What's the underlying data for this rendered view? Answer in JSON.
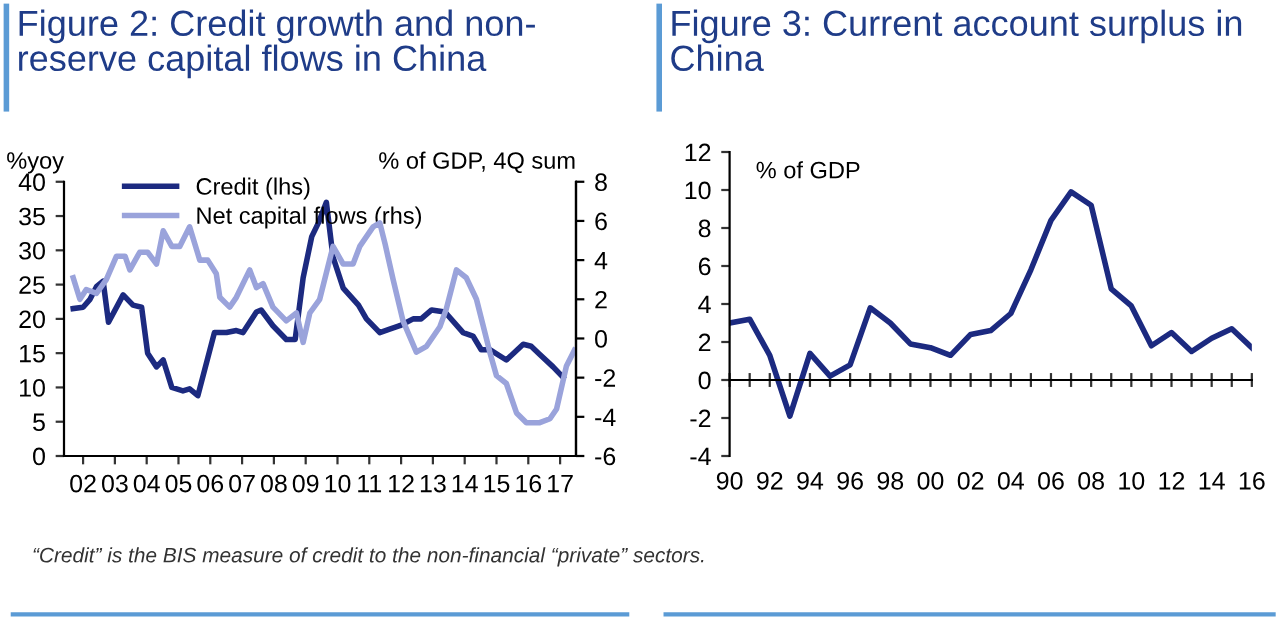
{
  "chart_data": [
    {
      "type": "line",
      "title": "Figure 2: Credit growth and non-\nreserve capital flows in China",
      "ylabel": "%yoy",
      "y2label": "% of GDP, 4Q sum",
      "legend": "top left",
      "xlim": [
        2001.4,
        2017.5
      ],
      "xticks": [
        {
          "value": 2002,
          "label": "02"
        },
        {
          "value": 2003,
          "label": "03"
        },
        {
          "value": 2004,
          "label": "04"
        },
        {
          "value": 2005,
          "label": "05"
        },
        {
          "value": 2006,
          "label": "06"
        },
        {
          "value": 2007,
          "label": "07"
        },
        {
          "value": 2008,
          "label": "08"
        },
        {
          "value": 2009,
          "label": "09"
        },
        {
          "value": 2010,
          "label": "10"
        },
        {
          "value": 2011,
          "label": "11"
        },
        {
          "value": 2012,
          "label": "12"
        },
        {
          "value": 2013,
          "label": "13"
        },
        {
          "value": 2014,
          "label": "14"
        },
        {
          "value": 2015,
          "label": "15"
        },
        {
          "value": 2016,
          "label": "16"
        },
        {
          "value": 2017,
          "label": "17"
        }
      ],
      "ylim": [
        0,
        40
      ],
      "yticks": [
        0,
        5,
        10,
        15,
        20,
        25,
        30,
        35,
        40
      ],
      "y2lim": [
        -6,
        8
      ],
      "y2ticks": [
        -6,
        -4,
        -2,
        0,
        2,
        4,
        6,
        8
      ],
      "series": [
        {
          "name": "Credit (lhs)",
          "color": "#1c2a80",
          "x": [
            2001.69,
            2002.0,
            2002.21,
            2002.42,
            2002.63,
            2002.8,
            2003.26,
            2003.57,
            2003.84,
            2004.03,
            2004.31,
            2004.52,
            2004.79,
            2005.14,
            2005.35,
            2005.61,
            2006.13,
            2006.51,
            2006.82,
            2007.03,
            2007.45,
            2007.6,
            2007.97,
            2008.39,
            2008.67,
            2008.92,
            2009.19,
            2009.4,
            2009.65,
            2009.86,
            2010.18,
            2010.66,
            2010.91,
            2011.33,
            2011.64,
            2011.96,
            2012.38,
            2012.63,
            2012.96,
            2013.38,
            2013.95,
            2014.26,
            2014.52,
            2014.79,
            2015.31,
            2015.84,
            2016.09,
            2016.32,
            2016.78,
            2017.09
          ],
          "values": [
            21.5,
            21.7,
            22.8,
            24.7,
            25.5,
            19.5,
            23.5,
            22,
            21.7,
            15,
            13,
            14,
            10,
            9.5,
            9.8,
            8.8,
            18,
            18,
            18.3,
            18,
            21,
            21.3,
            19,
            17,
            17,
            26,
            32,
            34,
            37,
            29,
            24.5,
            22,
            20,
            18,
            18.5,
            19,
            20,
            20,
            21.3,
            21,
            18,
            17.5,
            15.5,
            15.5,
            14,
            16.3,
            16,
            15,
            13,
            11.5
          ]
        },
        {
          "name": "Net capital flows (rhs)",
          "color": "#9aa3db",
          "axis": "y2",
          "x": [
            2001.69,
            2001.9,
            2002.1,
            2002.42,
            2002.73,
            2003.05,
            2003.32,
            2003.47,
            2003.78,
            2004.03,
            2004.31,
            2004.52,
            2004.79,
            2005.04,
            2005.35,
            2005.67,
            2005.92,
            2006.19,
            2006.3,
            2006.61,
            2006.82,
            2007.24,
            2007.45,
            2007.66,
            2007.97,
            2008.39,
            2008.71,
            2008.92,
            2009.13,
            2009.44,
            2009.86,
            2010.18,
            2010.49,
            2010.7,
            2011.12,
            2011.33,
            2011.5,
            2011.75,
            2012.06,
            2012.48,
            2012.8,
            2013.22,
            2013.42,
            2013.74,
            2014.05,
            2014.37,
            2014.79,
            2015.0,
            2015.31,
            2015.63,
            2015.94,
            2016.36,
            2016.68,
            2016.89,
            2017.2,
            2017.45
          ],
          "values": [
            3.1,
            2.0,
            2.5,
            2.3,
            3.0,
            4.2,
            4.2,
            3.5,
            4.4,
            4.4,
            3.8,
            5.5,
            4.7,
            4.7,
            5.7,
            4.0,
            4.0,
            3.3,
            2.1,
            1.6,
            2.1,
            3.5,
            2.6,
            2.8,
            1.6,
            0.9,
            1.3,
            -0.2,
            1.3,
            2.0,
            4.7,
            3.8,
            3.8,
            4.7,
            5.7,
            5.9,
            4.8,
            3.0,
            0.9,
            -0.7,
            -0.4,
            0.6,
            1.5,
            3.5,
            3.1,
            2.0,
            -0.7,
            -1.9,
            -2.3,
            -3.8,
            -4.3,
            -4.3,
            -4.1,
            -3.6,
            -1.4,
            -0.6
          ]
        }
      ],
      "annotations": [
        "“Credit” is the BIS measure of credit to the non-financial “private” sectors."
      ]
    },
    {
      "type": "line",
      "title": "Figure 3: Current account surplus in\nChina",
      "ylabel": "% of GDP",
      "xlim": [
        1990,
        2016
      ],
      "xticks": [
        {
          "value": 1990,
          "label": "90"
        },
        {
          "value": 1991,
          "label": null
        },
        {
          "value": 1992,
          "label": "92"
        },
        {
          "value": 1993,
          "label": null
        },
        {
          "value": 1994,
          "label": "94"
        },
        {
          "value": 1995,
          "label": null
        },
        {
          "value": 1996,
          "label": "96"
        },
        {
          "value": 1997,
          "label": null
        },
        {
          "value": 1998,
          "label": "98"
        },
        {
          "value": 1999,
          "label": null
        },
        {
          "value": 2000,
          "label": "00"
        },
        {
          "value": 2001,
          "label": null
        },
        {
          "value": 2002,
          "label": "02"
        },
        {
          "value": 2003,
          "label": null
        },
        {
          "value": 2004,
          "label": "04"
        },
        {
          "value": 2005,
          "label": null
        },
        {
          "value": 2006,
          "label": "06"
        },
        {
          "value": 2007,
          "label": null
        },
        {
          "value": 2008,
          "label": "08"
        },
        {
          "value": 2009,
          "label": null
        },
        {
          "value": 2010,
          "label": "10"
        },
        {
          "value": 2011,
          "label": null
        },
        {
          "value": 2012,
          "label": "12"
        },
        {
          "value": 2013,
          "label": null
        },
        {
          "value": 2014,
          "label": "14"
        },
        {
          "value": 2015,
          "label": null
        },
        {
          "value": 2016,
          "label": "16"
        }
      ],
      "ylim": [
        -4,
        12
      ],
      "yticks": [
        -4,
        -2,
        0,
        2,
        4,
        6,
        8,
        10,
        12
      ],
      "series": [
        {
          "color": "#1c2a80",
          "x": [
            1990,
            1991,
            1992,
            1993,
            1994,
            1995,
            1996,
            1997,
            1998,
            1999,
            2000,
            2001,
            2002,
            2003,
            2004,
            2005,
            2006,
            2007,
            2008,
            2009,
            2010,
            2011,
            2012,
            2013,
            2014,
            2015,
            2016
          ],
          "values": [
            3.0,
            3.2,
            1.3,
            -1.9,
            1.4,
            0.2,
            0.8,
            3.8,
            3.0,
            1.9,
            1.7,
            1.3,
            2.4,
            2.6,
            3.5,
            5.8,
            8.4,
            9.9,
            9.2,
            4.8,
            3.9,
            1.8,
            2.5,
            1.5,
            2.2,
            2.7,
            1.7
          ]
        }
      ]
    }
  ]
}
